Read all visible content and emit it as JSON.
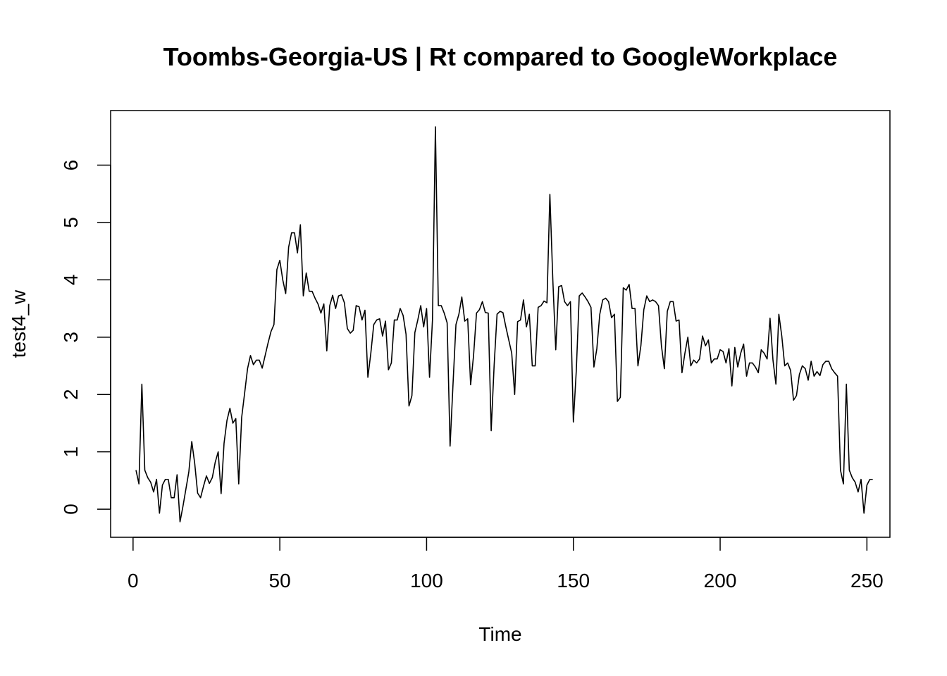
{
  "chart_data": {
    "type": "line",
    "title": "Toombs-Georgia-US | Rt compared to GoogleWorkplace",
    "xlabel": "Time",
    "ylabel": "test4_w",
    "xlim": [
      1,
      248
    ],
    "ylim": [
      -0.22,
      6.67
    ],
    "xticks": [
      0,
      50,
      100,
      150,
      200,
      250
    ],
    "yticks": [
      0,
      1,
      2,
      3,
      4,
      5,
      6
    ],
    "grid": false,
    "legend": "none",
    "line_color": "#000000",
    "x_start": 1,
    "values": [
      0.68,
      0.44,
      2.18,
      0.68,
      0.55,
      0.47,
      0.3,
      0.52,
      -0.07,
      0.42,
      0.52,
      0.52,
      0.2,
      0.2,
      0.6,
      -0.22,
      0.05,
      0.35,
      0.65,
      1.18,
      0.8,
      0.28,
      0.2,
      0.4,
      0.58,
      0.45,
      0.55,
      0.82,
      1.0,
      0.27,
      1.15,
      1.55,
      1.76,
      1.5,
      1.58,
      0.44,
      1.6,
      2.02,
      2.45,
      2.68,
      2.52,
      2.6,
      2.6,
      2.46,
      2.68,
      2.9,
      3.1,
      3.22,
      4.18,
      4.34,
      4.0,
      3.76,
      4.57,
      4.82,
      4.82,
      4.47,
      4.96,
      3.72,
      4.12,
      3.8,
      3.8,
      3.68,
      3.58,
      3.42,
      3.58,
      2.76,
      3.55,
      3.73,
      3.5,
      3.72,
      3.74,
      3.6,
      3.15,
      3.07,
      3.12,
      3.55,
      3.53,
      3.3,
      3.47,
      2.3,
      2.72,
      3.22,
      3.3,
      3.32,
      3.02,
      3.28,
      2.43,
      2.55,
      3.3,
      3.3,
      3.5,
      3.38,
      3.05,
      1.8,
      1.98,
      3.08,
      3.3,
      3.55,
      3.18,
      3.5,
      2.3,
      3.3,
      6.67,
      3.55,
      3.55,
      3.42,
      3.25,
      1.1,
      2.18,
      3.22,
      3.4,
      3.7,
      3.28,
      3.32,
      2.17,
      2.68,
      3.42,
      3.48,
      3.62,
      3.43,
      3.42,
      1.37,
      2.5,
      3.4,
      3.45,
      3.43,
      3.18,
      2.95,
      2.72,
      2.0,
      3.27,
      3.3,
      3.65,
      3.18,
      3.4,
      2.5,
      2.5,
      3.52,
      3.55,
      3.63,
      3.6,
      5.49,
      4.0,
      2.78,
      3.88,
      3.9,
      3.62,
      3.55,
      3.62,
      1.52,
      2.42,
      3.72,
      3.77,
      3.7,
      3.62,
      3.52,
      2.48,
      2.8,
      3.4,
      3.65,
      3.68,
      3.62,
      3.34,
      3.4,
      1.88,
      1.95,
      3.86,
      3.82,
      3.92,
      3.5,
      3.5,
      2.5,
      2.85,
      3.48,
      3.72,
      3.62,
      3.65,
      3.62,
      3.55,
      2.85,
      2.45,
      3.45,
      3.62,
      3.62,
      3.28,
      3.3,
      2.38,
      2.72,
      3.0,
      2.5,
      2.6,
      2.55,
      2.62,
      3.02,
      2.85,
      2.95,
      2.55,
      2.62,
      2.62,
      2.78,
      2.75,
      2.55,
      2.8,
      2.15,
      2.82,
      2.48,
      2.72,
      2.88,
      2.32,
      2.55,
      2.55,
      2.48,
      2.38,
      2.78,
      2.72,
      2.62,
      3.33,
      2.6,
      2.18,
      3.4,
      3.02,
      2.5,
      2.55,
      2.42,
      1.9,
      1.98,
      2.35,
      2.5,
      2.45,
      2.25,
      2.58,
      2.32,
      2.4,
      2.33,
      2.52,
      2.58,
      2.58,
      2.45,
      2.38,
      2.32,
      0.68,
      0.44,
      2.18,
      0.68,
      0.55,
      0.47,
      0.3,
      0.52,
      -0.07,
      0.42,
      0.52,
      0.52
    ]
  }
}
